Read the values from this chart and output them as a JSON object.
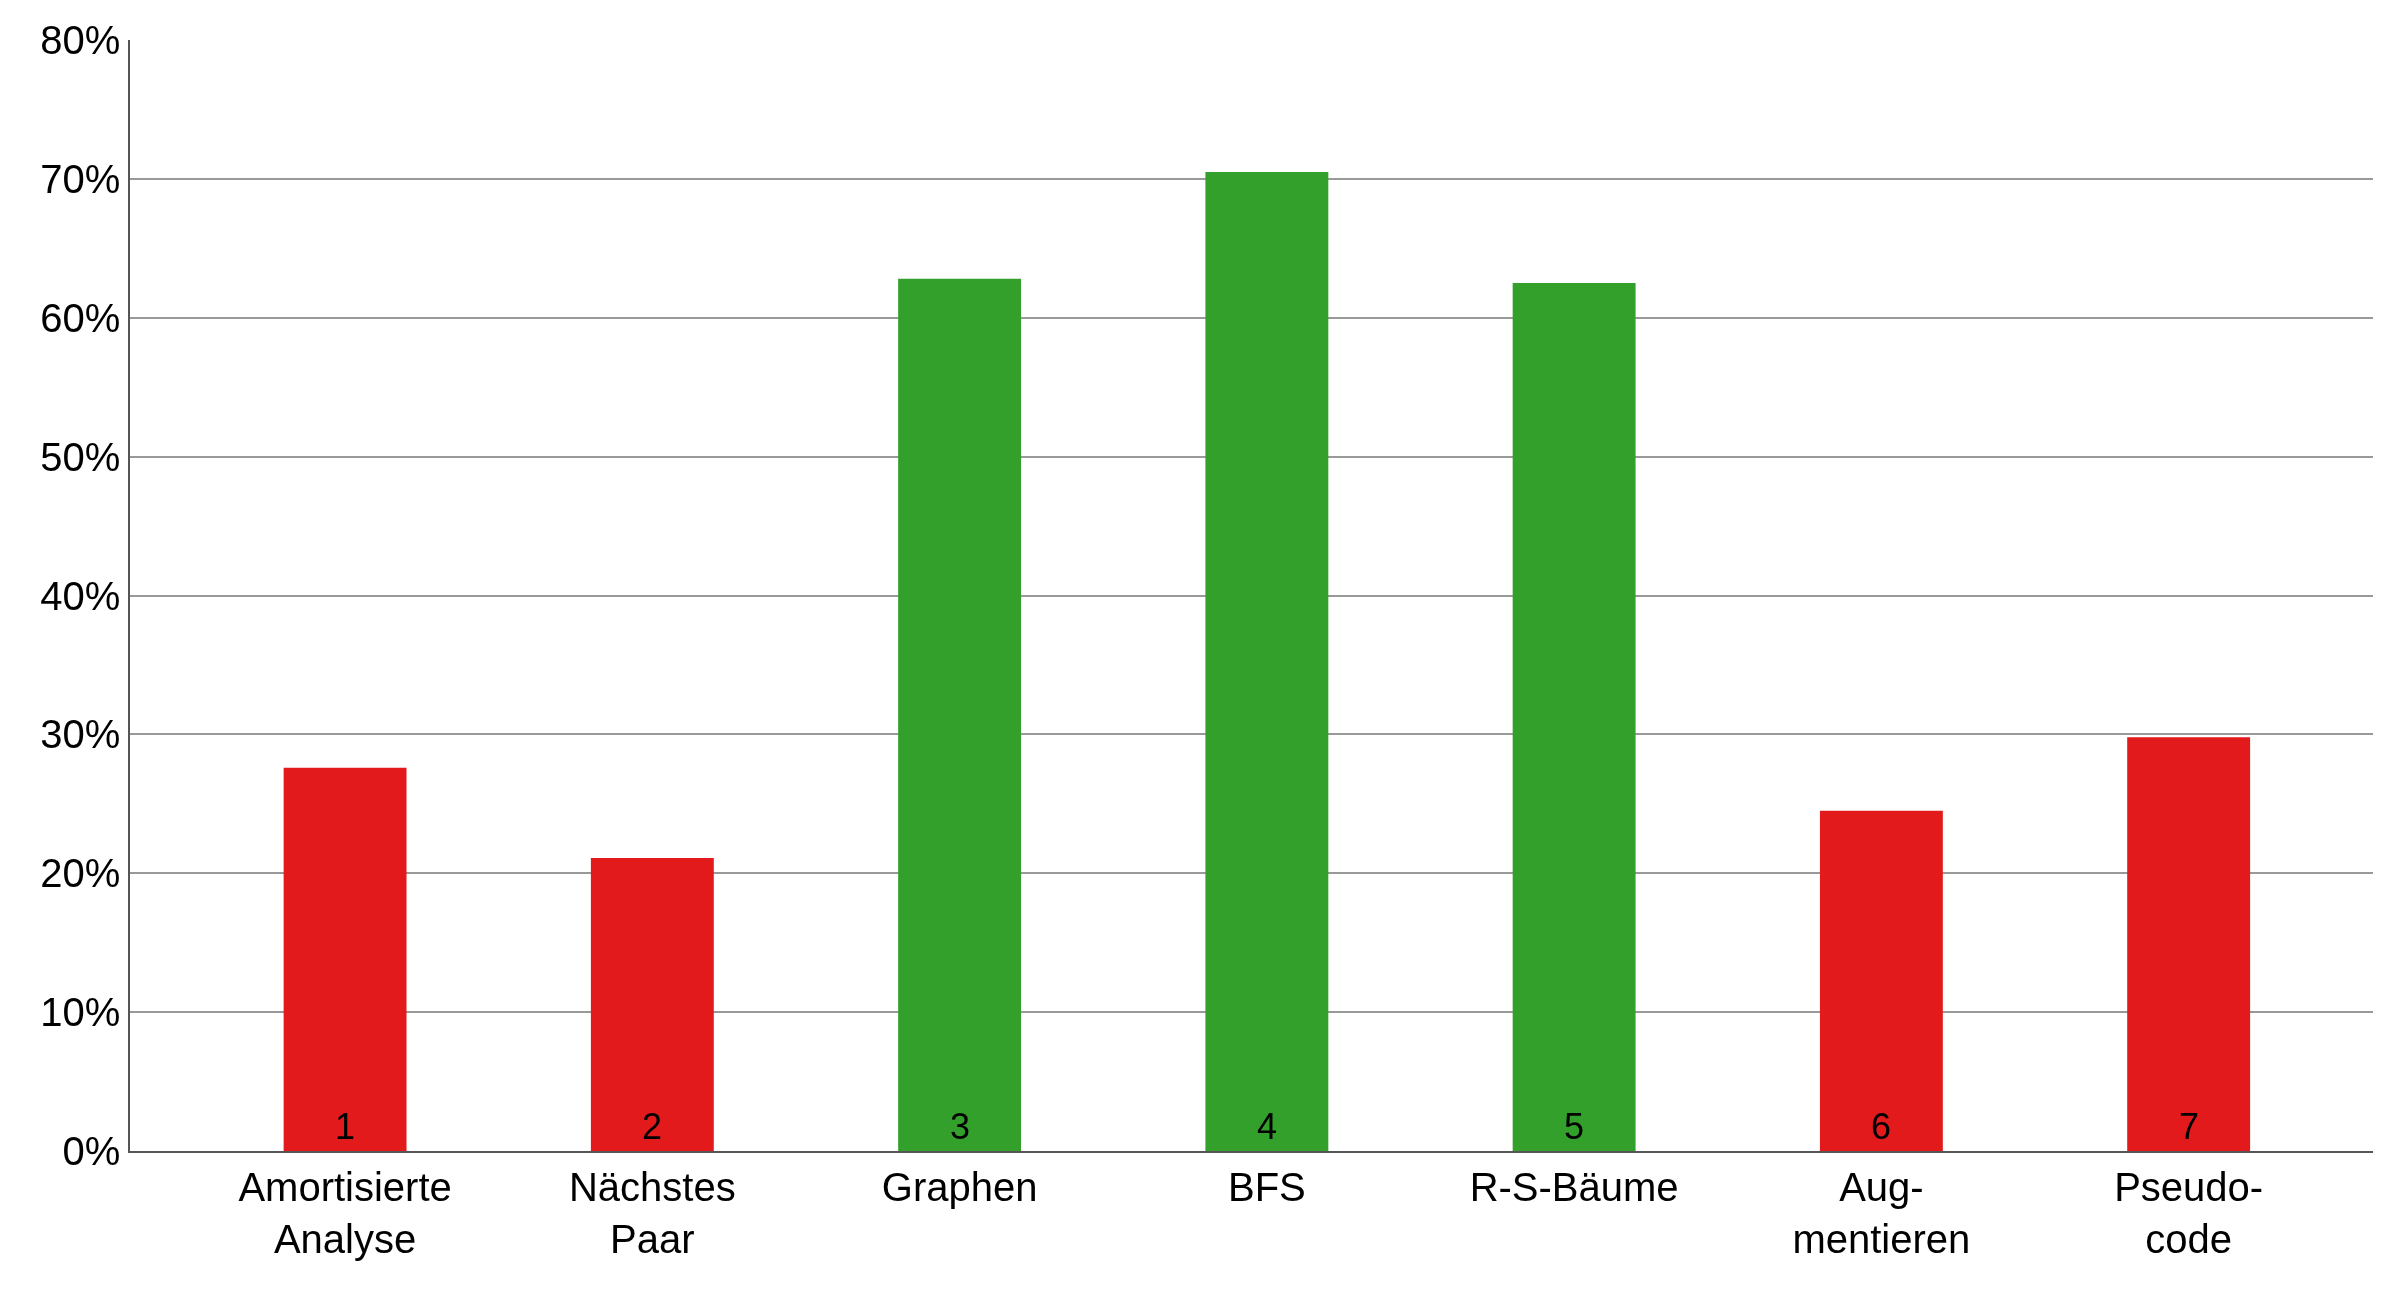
{
  "chart_data": {
    "type": "bar",
    "categories": [
      "Amortisierte\nAnalyse",
      "Nächstes\nPaar",
      "Graphen",
      "BFS",
      "R-S-Bäume",
      "Aug-\nmentieren",
      "Pseudo-\ncode"
    ],
    "values": [
      27.6,
      21.1,
      62.8,
      70.5,
      62.5,
      24.5,
      29.8
    ],
    "colors": [
      "#e31a1c",
      "#e31a1c",
      "#33a02c",
      "#33a02c",
      "#33a02c",
      "#e31a1c",
      "#e31a1c"
    ],
    "ylim": [
      0,
      80
    ],
    "yticks": [
      {
        "value": 0,
        "label": "0%"
      },
      {
        "value": 10,
        "label": "10%"
      },
      {
        "value": 20,
        "label": "20%"
      },
      {
        "value": 30,
        "label": "30%"
      },
      {
        "value": 40,
        "label": "40%"
      },
      {
        "value": 50,
        "label": "50%"
      },
      {
        "value": 60,
        "label": "60%"
      },
      {
        "value": 70,
        "label": "70%"
      },
      {
        "value": 80,
        "label": "80%"
      }
    ],
    "grid": "y",
    "annotations": [
      {
        "text": "1",
        "x": "Amortisierte\nAnalyse",
        "y": 0
      },
      {
        "text": "2",
        "x": "Nächstes\nPaar",
        "y": 0
      },
      {
        "text": "3",
        "x": "Graphen",
        "y": 0
      },
      {
        "text": "4",
        "x": "BFS",
        "y": 0
      },
      {
        "text": "5",
        "x": "R-S-Bäume",
        "y": 0
      },
      {
        "text": "6",
        "x": "Aug-\nmentieren",
        "y": 0
      },
      {
        "text": "7",
        "x": "Pseudo-\ncode",
        "y": 0
      }
    ]
  }
}
